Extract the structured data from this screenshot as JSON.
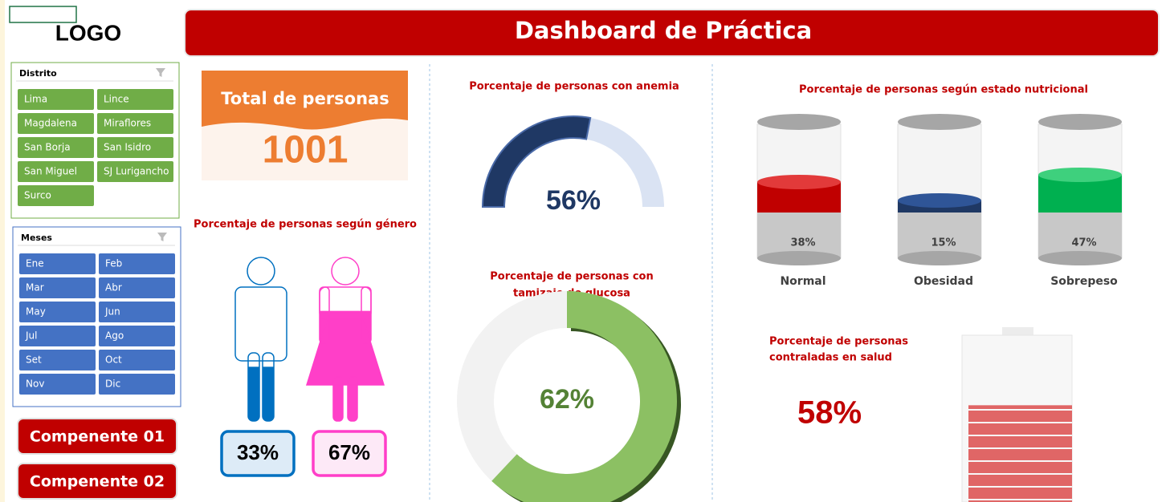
{
  "logo": "LOGO",
  "title": "Dashboard de Práctica",
  "slicers": [
    {
      "title": "Distrito",
      "items": [
        "Lima",
        "Lince",
        "Magdalena",
        "Miraflores",
        "San Borja",
        "San Isidro",
        "San Miguel",
        "SJ Lurigancho",
        "Surco"
      ]
    },
    {
      "title": "Meses",
      "items": [
        "Ene",
        "Feb",
        "Mar",
        "Abr",
        "May",
        "Jun",
        "Jul",
        "Ago",
        "Set",
        "Oct",
        "Nov",
        "Dic"
      ]
    }
  ],
  "buttons": [
    "Compenente 01",
    "Compenente 02"
  ],
  "total": {
    "label": "Total de personas",
    "value": 1001
  },
  "gender": {
    "title": "Porcentaje de personas según género",
    "values": [
      33,
      67
    ],
    "value_labels": [
      "33%",
      "67%"
    ]
  },
  "anemia": {
    "title": "Porcentaje de personas con anemia",
    "value": 56,
    "value_label": "56%"
  },
  "glucose": {
    "title": [
      "Porcentaje de personas con",
      "tamizaje de glucosa"
    ],
    "value": 62,
    "value_label": "62%"
  },
  "nutrition": {
    "title": "Porcentaje de personas según estado nutricional",
    "categories": [
      "Normal",
      "Obesidad",
      "Sobrepeso"
    ],
    "values": [
      38,
      15,
      47
    ],
    "value_labels": [
      "38%",
      "15%",
      "47%"
    ]
  },
  "controlled": {
    "title": [
      "Porcentaje de personas",
      "contraladas en salud"
    ],
    "value": 58,
    "value_label": "58%"
  }
}
